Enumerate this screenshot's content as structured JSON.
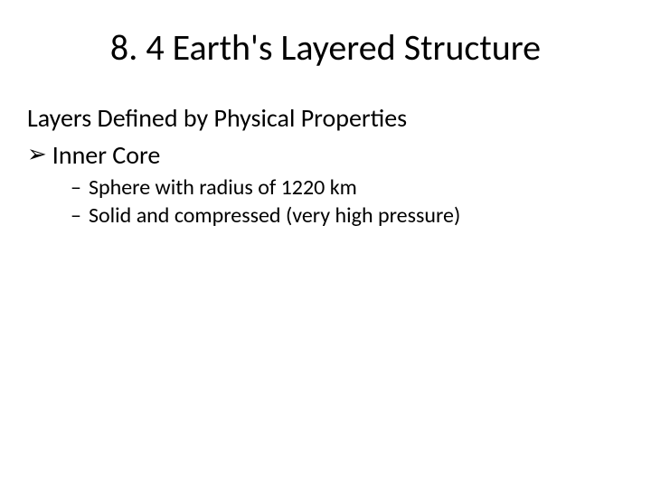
{
  "slide": {
    "title": "8. 4 Earth's Layered Structure",
    "subtitle": "Layers Defined by Physical Properties",
    "level1_marker": "➢",
    "level1_text": "Inner Core",
    "level2_marker": "–",
    "sub_items": [
      "Sphere with radius of 1220 km",
      "Solid and compressed (very high pressure)"
    ]
  },
  "colors": {
    "background": "#ffffff",
    "text": "#000000"
  },
  "typography": {
    "title_fontsize": 40,
    "subtitle_fontsize": 28,
    "level1_fontsize": 28,
    "level2_fontsize": 24,
    "font_family": "Calibri"
  }
}
